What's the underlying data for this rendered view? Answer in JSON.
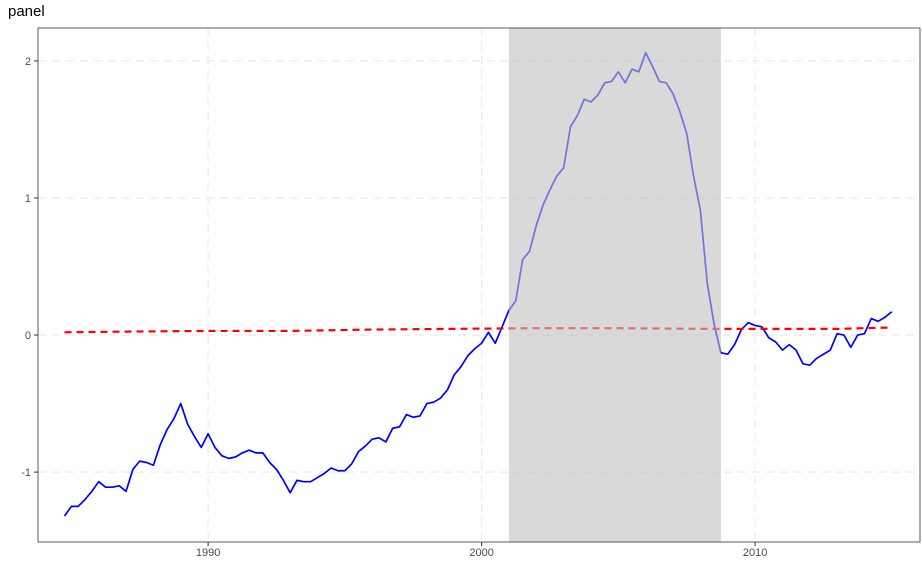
{
  "chart_data": {
    "type": "line",
    "title": "panel",
    "xlim": [
      1983.78,
      2016.03
    ],
    "ylim": [
      -1.51,
      2.24
    ],
    "xticks": [
      1990,
      2000,
      2010
    ],
    "yticks": [
      -1,
      0,
      1,
      2
    ],
    "grid": true,
    "shaded_region": {
      "xmin": 2001,
      "xmax": 2008.75,
      "color": "#bfbfbf"
    },
    "series": [
      {
        "color": "#0000ff",
        "dashed": false,
        "x": [
          1984.75,
          1985,
          1985.25,
          1985.5,
          1985.75,
          1986,
          1986.25,
          1986.5,
          1986.75,
          1987,
          1987.25,
          1987.5,
          1987.75,
          1988,
          1988.25,
          1988.5,
          1988.75,
          1989,
          1989.25,
          1989.5,
          1989.75,
          1990,
          1990.25,
          1990.5,
          1990.75,
          1991,
          1991.25,
          1991.5,
          1991.75,
          1992,
          1992.25,
          1992.5,
          1992.75,
          1993,
          1993.25,
          1993.5,
          1993.75,
          1994,
          1994.25,
          1994.5,
          1994.75,
          1995,
          1995.25,
          1995.5,
          1995.75,
          1996,
          1996.25,
          1996.5,
          1996.75,
          1997,
          1997.25,
          1997.5,
          1997.75,
          1998,
          1998.25,
          1998.5,
          1998.75,
          1999,
          1999.25,
          1999.5,
          1999.75,
          2000,
          2000.25,
          2000.5,
          2000.75,
          2001,
          2001.25,
          2001.5,
          2001.75,
          2002,
          2002.25,
          2002.5,
          2002.75,
          2003,
          2003.25,
          2003.5,
          2003.75,
          2004,
          2004.25,
          2004.5,
          2004.75,
          2005,
          2005.25,
          2005.5,
          2005.75,
          2006,
          2006.25,
          2006.5,
          2006.75,
          2007,
          2007.25,
          2007.5,
          2007.75,
          2008,
          2008.25,
          2008.5,
          2008.75,
          2009,
          2009.25,
          2009.5,
          2009.75,
          2010,
          2010.25,
          2010.5,
          2010.75,
          2011,
          2011.25,
          2011.5,
          2011.75,
          2012,
          2012.25,
          2012.5,
          2012.75,
          2013,
          2013.25,
          2013.5,
          2013.75,
          2014,
          2014.25,
          2014.5,
          2014.75,
          2015
        ],
        "values": [
          -1.32,
          -1.25,
          -1.25,
          -1.2,
          -1.14,
          -1.07,
          -1.11,
          -1.11,
          -1.1,
          -1.14,
          -0.98,
          -0.92,
          -0.93,
          -0.95,
          -0.8,
          -0.69,
          -0.61,
          -0.5,
          -0.65,
          -0.74,
          -0.82,
          -0.72,
          -0.82,
          -0.88,
          -0.9,
          -0.89,
          -0.86,
          -0.84,
          -0.86,
          -0.86,
          -0.93,
          -0.98,
          -1.06,
          -1.15,
          -1.06,
          -1.07,
          -1.07,
          -1.04,
          -1.01,
          -0.97,
          -0.99,
          -0.99,
          -0.94,
          -0.85,
          -0.81,
          -0.76,
          -0.75,
          -0.78,
          -0.68,
          -0.67,
          -0.58,
          -0.6,
          -0.59,
          -0.5,
          -0.49,
          -0.46,
          -0.4,
          -0.29,
          -0.23,
          -0.15,
          -0.1,
          -0.06,
          0.02,
          -0.06,
          0.06,
          0.18,
          0.25,
          0.55,
          0.61,
          0.8,
          0.95,
          1.06,
          1.16,
          1.22,
          1.52,
          1.6,
          1.72,
          1.7,
          1.75,
          1.84,
          1.85,
          1.92,
          1.84,
          1.94,
          1.92,
          2.06,
          1.96,
          1.85,
          1.84,
          1.76,
          1.63,
          1.47,
          1.16,
          0.91,
          0.38,
          0.08,
          -0.13,
          -0.14,
          -0.07,
          0.04,
          0.09,
          0.07,
          0.06,
          -0.02,
          -0.05,
          -0.11,
          -0.07,
          -0.11,
          -0.21,
          -0.22,
          -0.17,
          -0.14,
          -0.11,
          0.01,
          0,
          -0.09,
          0,
          0.01,
          0.12,
          0.1,
          0.13,
          0.17
        ]
      },
      {
        "color": "#ff0000",
        "dashed": true,
        "x": [
          1984.75,
          1987,
          1990,
          1993,
          1996,
          1999,
          2002,
          2005,
          2008,
          2011,
          2013,
          2015
        ],
        "values": [
          0.02,
          0.025,
          0.03,
          0.03,
          0.04,
          0.045,
          0.05,
          0.05,
          0.045,
          0.045,
          0.045,
          0.055
        ]
      }
    ]
  }
}
